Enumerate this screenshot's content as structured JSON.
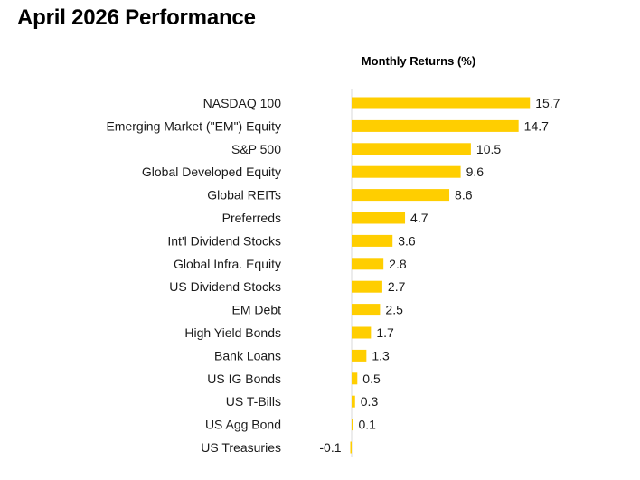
{
  "page": {
    "title": "April 2026 Performance"
  },
  "chart_data": {
    "type": "bar",
    "orientation": "horizontal",
    "title": "April 2026 Performance",
    "subtitle": "Monthly Returns (%)",
    "categories": [
      "NASDAQ 100",
      "Emerging Market (\"EM\") Equity",
      "S&P 500",
      "Global Developed Equity",
      "Global REITs",
      "Preferreds",
      "Int'l Dividend Stocks",
      "Global Infra. Equity",
      "US Dividend Stocks",
      "EM Debt",
      "High Yield Bonds",
      "Bank Loans",
      "US IG Bonds",
      "US T-Bills",
      "US Agg Bond",
      "US Treasuries"
    ],
    "values": [
      15.7,
      14.7,
      10.5,
      9.6,
      8.6,
      4.7,
      3.6,
      2.8,
      2.7,
      2.5,
      1.7,
      1.3,
      0.5,
      0.3,
      0.1,
      -0.1
    ],
    "value_labels": [
      "15.7",
      "14.7",
      "10.5",
      "9.6",
      "8.6",
      "4.7",
      "3.6",
      "2.8",
      "2.7",
      "2.5",
      "1.7",
      "1.3",
      "0.5",
      "0.3",
      "0.1",
      "-0.1"
    ],
    "xlim": [
      0,
      16
    ],
    "grid": false,
    "bar_color": "#FFCE00",
    "axis_line_color": "#d9d9d9"
  }
}
